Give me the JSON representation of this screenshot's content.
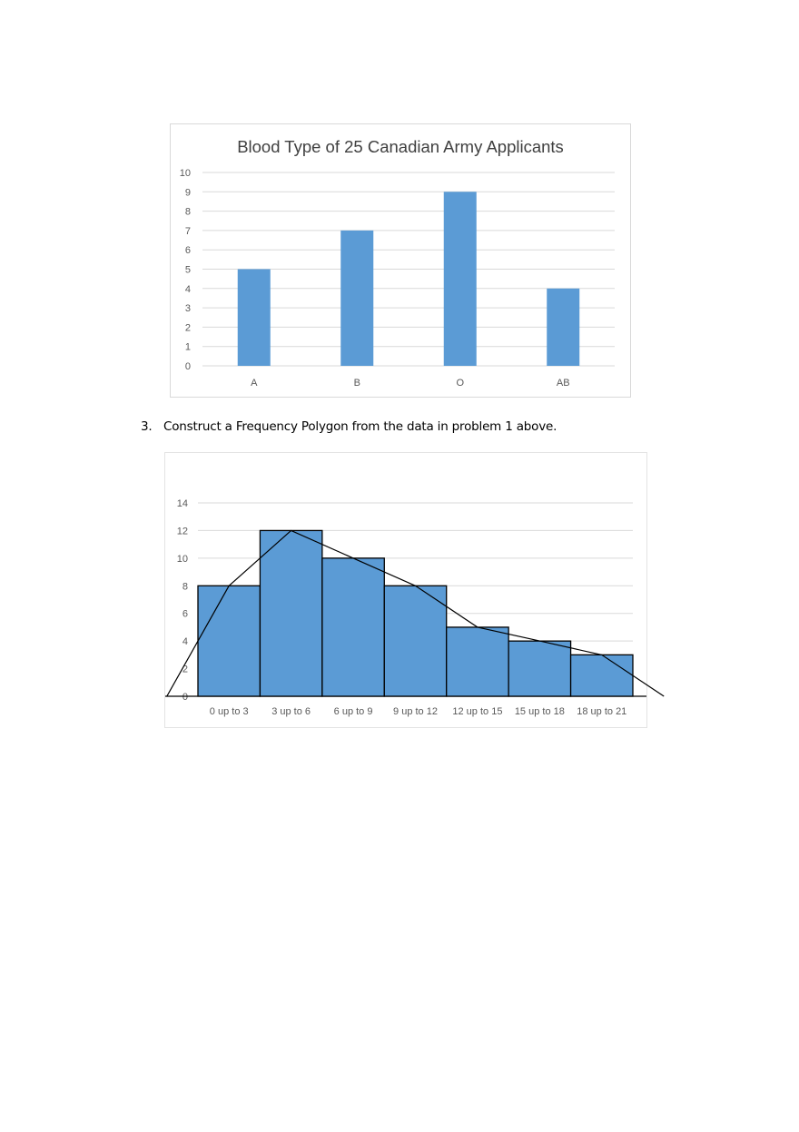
{
  "chart_data": [
    {
      "type": "bar",
      "title": "Blood Type of 25 Canadian Army Applicants",
      "categories": [
        "A",
        "B",
        "O",
        "AB"
      ],
      "values": [
        5,
        7,
        9,
        4
      ],
      "ylim": [
        0,
        10
      ],
      "yticks": [
        0,
        1,
        2,
        3,
        4,
        5,
        6,
        7,
        8,
        9,
        10
      ],
      "grid": true,
      "color": "#5b9bd5"
    },
    {
      "type": "bar",
      "title": "",
      "categories": [
        "0 up to 3",
        "3 up to 6",
        "6 up to 9",
        "9 up to 12",
        "12 up to 15",
        "15 up to 18",
        "18 up to 21"
      ],
      "values": [
        8,
        12,
        10,
        8,
        5,
        4,
        3
      ],
      "ylim": [
        0,
        14
      ],
      "yticks": [
        0,
        2,
        4,
        6,
        8,
        10,
        12,
        14
      ],
      "grid": true,
      "color": "#5b9bd5",
      "polygon": {
        "x": [
          -1.5,
          1.5,
          4.5,
          7.5,
          10.5,
          13.5,
          16.5,
          19.5,
          22.5
        ],
        "y": [
          0,
          8,
          12,
          10,
          8,
          5,
          4,
          3,
          0
        ]
      }
    }
  ],
  "problem": {
    "number": "3.",
    "text": "Construct a Frequency Polygon from the data in problem 1 above."
  }
}
